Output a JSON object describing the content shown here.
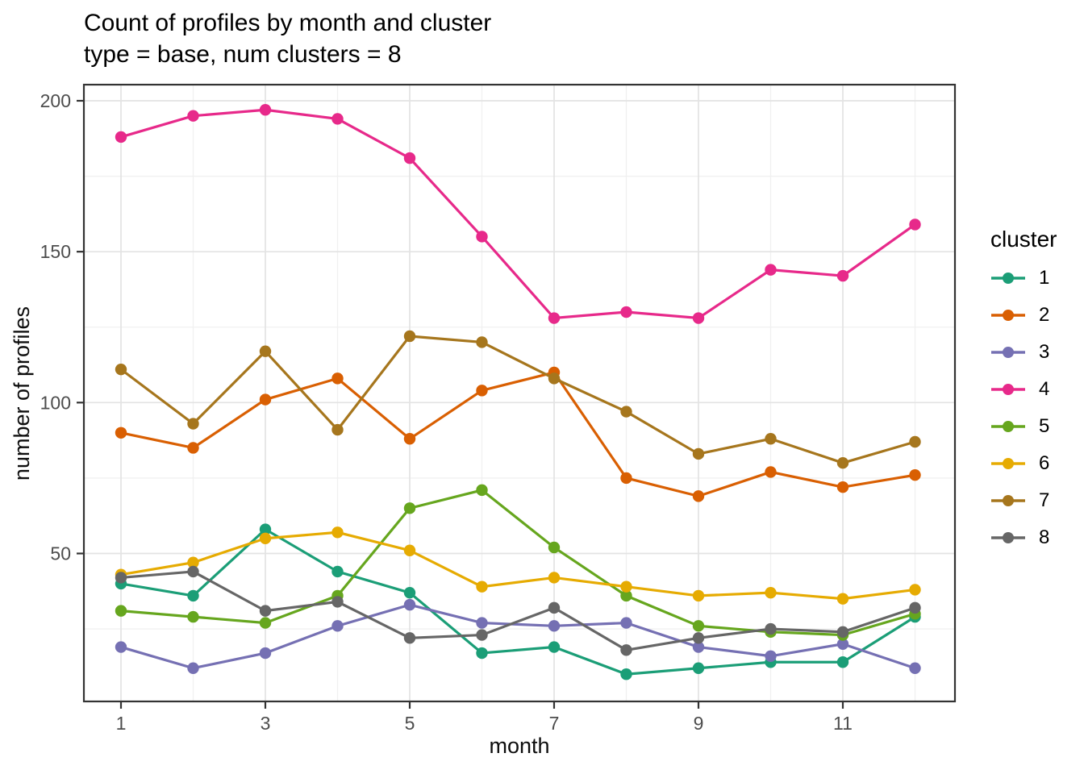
{
  "header": {
    "title": "Count of profiles by month and cluster",
    "subtitle": "type = base, num clusters = 8"
  },
  "chart_data": {
    "type": "line",
    "title": "Count of profiles by month and cluster",
    "subtitle": "type = base, num clusters = 8",
    "xlabel": "month",
    "ylabel": "number of profiles",
    "x": [
      1,
      2,
      3,
      4,
      5,
      6,
      7,
      8,
      9,
      10,
      11,
      12
    ],
    "series": [
      {
        "name": "1",
        "color": "#1B9E77",
        "values": [
          40,
          36,
          58,
          44,
          37,
          17,
          19,
          10,
          12,
          14,
          14,
          29
        ]
      },
      {
        "name": "2",
        "color": "#D95F02",
        "values": [
          90,
          85,
          101,
          108,
          88,
          104,
          110,
          75,
          69,
          77,
          72,
          76
        ]
      },
      {
        "name": "3",
        "color": "#7570B3",
        "values": [
          19,
          12,
          17,
          26,
          33,
          27,
          26,
          27,
          19,
          16,
          20,
          12
        ]
      },
      {
        "name": "4",
        "color": "#E7298A",
        "values": [
          188,
          195,
          197,
          194,
          181,
          155,
          128,
          130,
          128,
          144,
          142,
          159
        ]
      },
      {
        "name": "5",
        "color": "#66A61E",
        "values": [
          31,
          29,
          27,
          36,
          65,
          71,
          52,
          36,
          26,
          24,
          23,
          30
        ]
      },
      {
        "name": "6",
        "color": "#E6AB02",
        "values": [
          43,
          47,
          55,
          57,
          51,
          39,
          42,
          39,
          36,
          37,
          35,
          38
        ]
      },
      {
        "name": "7",
        "color": "#A6761D",
        "values": [
          111,
          93,
          117,
          91,
          122,
          120,
          108,
          97,
          83,
          88,
          80,
          87
        ]
      },
      {
        "name": "8",
        "color": "#666666",
        "values": [
          42,
          44,
          31,
          34,
          22,
          23,
          32,
          18,
          22,
          25,
          24,
          32
        ]
      }
    ],
    "x_major_ticks": [
      1,
      3,
      5,
      7,
      9,
      11
    ],
    "x_minor_gridlines": [
      2,
      4,
      6,
      8,
      10,
      12
    ],
    "y_major_ticks": [
      50,
      100,
      150,
      200
    ],
    "y_minor_gridlines": [
      25,
      75,
      125,
      175
    ],
    "xlim": [
      0.45,
      12.55
    ],
    "ylim": [
      1,
      205
    ],
    "grid": true,
    "legend": {
      "title": "cluster",
      "position": "right",
      "labels": [
        "1",
        "2",
        "3",
        "4",
        "5",
        "6",
        "7",
        "8"
      ]
    }
  },
  "style_colors": {
    "grid_major": "#e3e3e3",
    "grid_minor": "#f0f0f0",
    "panel_border": "#333333",
    "tick_mark": "#333333",
    "tick_label": "#4d4d4d"
  }
}
